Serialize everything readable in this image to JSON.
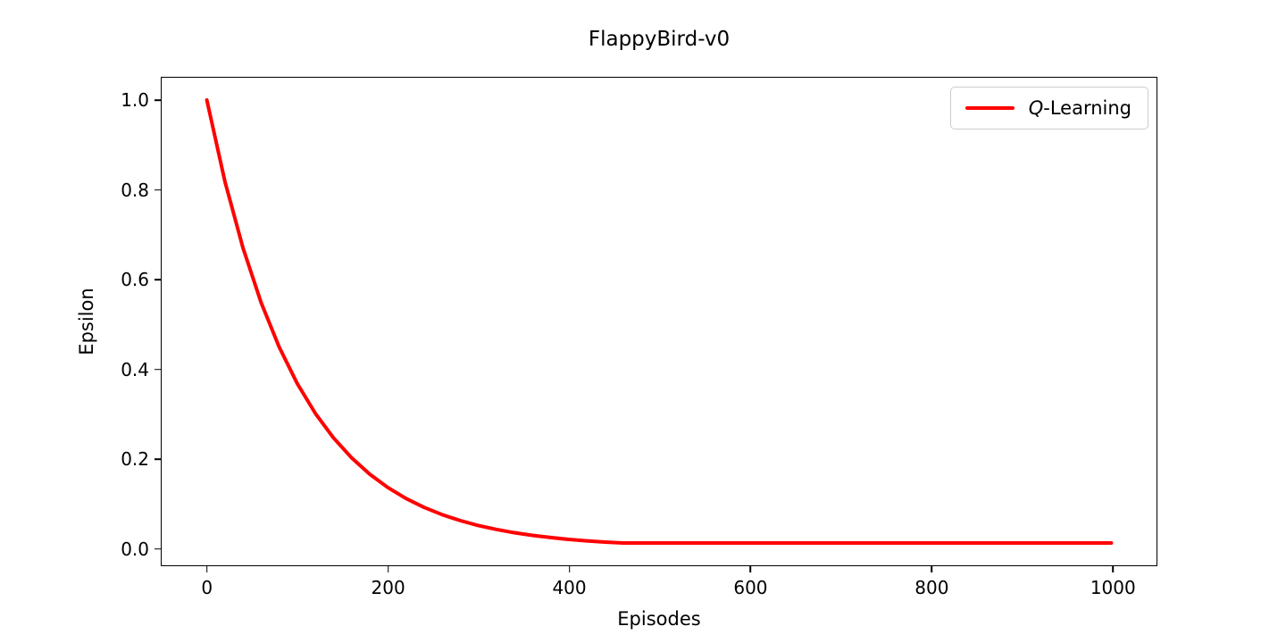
{
  "figure": {
    "legend": {
      "italic_part": "Q",
      "rest": "-Learning"
    }
  },
  "chart_data": {
    "type": "line",
    "title": "FlappyBird-v0",
    "xlabel": "Episodes",
    "ylabel": "Epsilon",
    "xlim": [
      -50,
      1050
    ],
    "ylim": [
      -0.04,
      1.05
    ],
    "xticks": [
      0,
      200,
      400,
      600,
      800,
      1000
    ],
    "xtick_labels": [
      "0",
      "200",
      "400",
      "600",
      "800",
      "1000"
    ],
    "yticks": [
      0.0,
      0.2,
      0.4,
      0.6,
      0.8,
      1.0
    ],
    "ytick_labels": [
      "0.0",
      "0.2",
      "0.4",
      "0.6",
      "0.8",
      "1.0"
    ],
    "grid": false,
    "legend_position": "upper right",
    "series": [
      {
        "name": "Q-Learning",
        "color": "#ff0000",
        "line_width": 4,
        "x": [
          0,
          20,
          40,
          60,
          80,
          100,
          120,
          140,
          160,
          180,
          200,
          220,
          240,
          260,
          280,
          300,
          320,
          340,
          360,
          380,
          400,
          420,
          440,
          460,
          480,
          500,
          520,
          540,
          560,
          580,
          600,
          620,
          640,
          660,
          680,
          700,
          720,
          740,
          760,
          780,
          800,
          820,
          840,
          860,
          880,
          900,
          920,
          940,
          960,
          980,
          1000
        ],
        "y": [
          1.0,
          0.8179,
          0.669,
          0.5472,
          0.4475,
          0.366,
          0.2994,
          0.2449,
          0.2003,
          0.1638,
          0.134,
          0.1096,
          0.0896,
          0.0733,
          0.06,
          0.049,
          0.0401,
          0.0328,
          0.0268,
          0.022,
          0.0179,
          0.0147,
          0.012,
          0.01,
          0.01,
          0.01,
          0.01,
          0.01,
          0.01,
          0.01,
          0.01,
          0.01,
          0.01,
          0.01,
          0.01,
          0.01,
          0.01,
          0.01,
          0.01,
          0.01,
          0.01,
          0.01,
          0.01,
          0.01,
          0.01,
          0.01,
          0.01,
          0.01,
          0.01,
          0.01,
          0.01
        ]
      }
    ]
  }
}
